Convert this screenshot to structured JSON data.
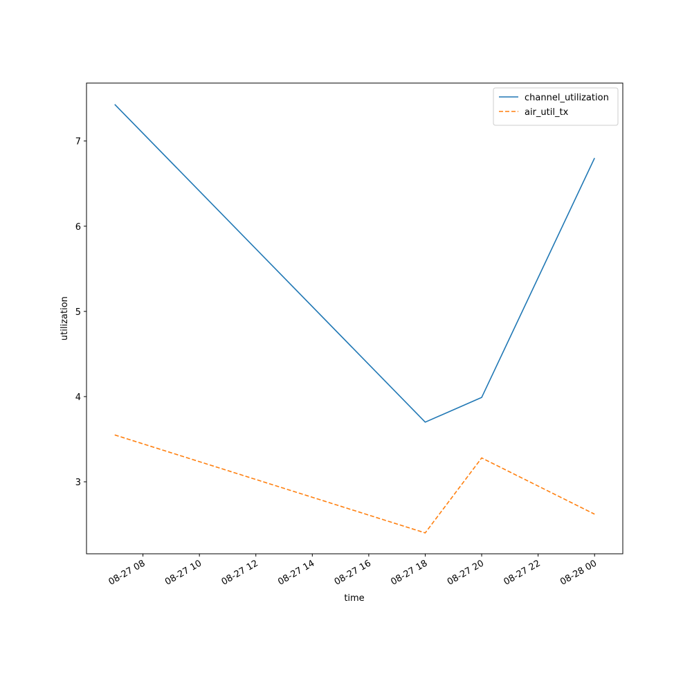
{
  "chart_data": {
    "type": "line",
    "x_label": "time",
    "y_label": "utilization",
    "x": [
      "08-27 07",
      "08-27 18",
      "08-27 20",
      "08-28 00"
    ],
    "series": [
      {
        "name": "channel_utilization",
        "color": "#1f77b4",
        "dash": "solid",
        "values": [
          7.43,
          3.7,
          3.99,
          6.8
        ]
      },
      {
        "name": "air_util_tx",
        "color": "#ff7f0e",
        "dash": "dashed",
        "values": [
          3.55,
          2.4,
          3.28,
          2.62
        ]
      }
    ],
    "xlim": [
      "08-27 06",
      "08-28 01"
    ],
    "xticks": [
      "08-27 08",
      "08-27 10",
      "08-27 12",
      "08-27 14",
      "08-27 16",
      "08-27 18",
      "08-27 20",
      "08-27 22",
      "08-28 00"
    ],
    "ylim": [
      2.155,
      7.68
    ],
    "yticks": [
      3,
      4,
      5,
      6,
      7
    ],
    "grid": false,
    "legend": "upper right"
  }
}
